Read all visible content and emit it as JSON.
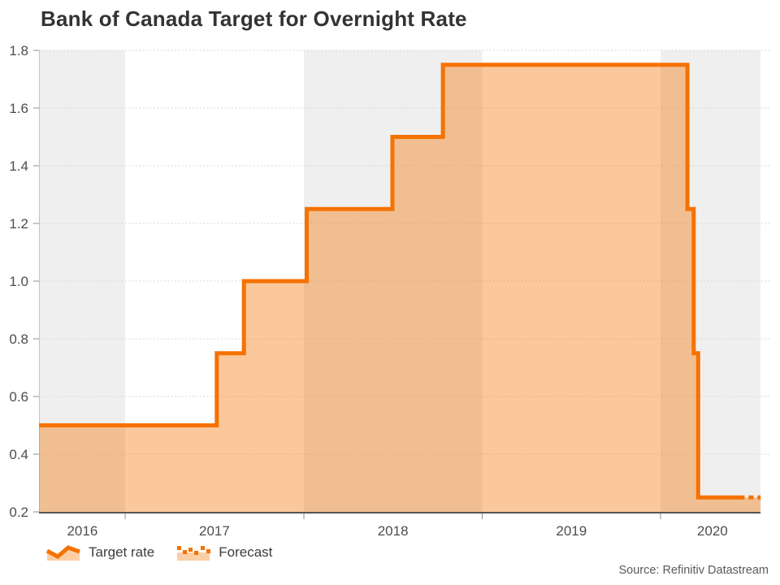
{
  "title": "Bank of Canada Target for Overnight Rate",
  "source": "Source: Refinitiv Datastream",
  "legend": {
    "items": [
      {
        "label": "Target rate",
        "swatch": "area-with-solid-line-icon"
      },
      {
        "label": "Forecast",
        "swatch": "area-with-dotted-line-icon"
      }
    ]
  },
  "colors": {
    "line": "#f57200",
    "fill_opacity": 0.39,
    "band": "#efefef",
    "grid": "#d6d6d6",
    "axis_line": "#555555",
    "axis_edge": "#c4c4c4",
    "tick": "#8c8c8c",
    "title_text": "#333333",
    "axis_text": "#4d4d4d",
    "legend_text": "#3d3d3d",
    "source_text": "#595959"
  },
  "chart_data": {
    "type": "area",
    "subtype": "step-line",
    "title": "Bank of Canada Target for Overnight Rate",
    "xlabel": "",
    "ylabel": "",
    "ylim": [
      0.2,
      1.8
    ],
    "yticks": [
      0.2,
      0.4,
      0.6,
      0.8,
      1.0,
      1.2,
      1.4,
      1.6,
      1.8
    ],
    "x_domain": [
      2016.517,
      2020.623
    ],
    "x_year_ticks": [
      2017,
      2018,
      2019,
      2020
    ],
    "x_labels": [
      {
        "label": "2016",
        "x": 2016.76
      },
      {
        "label": "2017",
        "x": 2017.5
      },
      {
        "label": "2018",
        "x": 2018.5
      },
      {
        "label": "2019",
        "x": 2019.5
      },
      {
        "label": "2020",
        "x": 2020.29
      }
    ],
    "shaded_bands": [
      [
        2016.517,
        2017
      ],
      [
        2018,
        2019
      ],
      [
        2020,
        2020.56
      ]
    ],
    "grid": "dotted-horizontal",
    "legend_position": "bottom-left",
    "series": [
      {
        "name": "Target rate",
        "style": "solid",
        "points": [
          [
            2016.517,
            0.5
          ],
          [
            2017.513,
            0.5
          ],
          [
            2017.513,
            0.75
          ],
          [
            2017.665,
            0.75
          ],
          [
            2017.665,
            1.0
          ],
          [
            2018.017,
            1.0
          ],
          [
            2018.017,
            1.25
          ],
          [
            2018.497,
            1.25
          ],
          [
            2018.497,
            1.5
          ],
          [
            2018.78,
            1.5
          ],
          [
            2018.78,
            1.75
          ],
          [
            2020.15,
            1.75
          ],
          [
            2020.15,
            1.25
          ],
          [
            2020.185,
            1.25
          ],
          [
            2020.185,
            0.75
          ],
          [
            2020.21,
            0.75
          ],
          [
            2020.21,
            0.25
          ],
          [
            2020.47,
            0.25
          ]
        ]
      },
      {
        "name": "Forecast",
        "style": "dashed",
        "points": [
          [
            2020.47,
            0.25
          ],
          [
            2020.56,
            0.25
          ]
        ]
      }
    ]
  }
}
